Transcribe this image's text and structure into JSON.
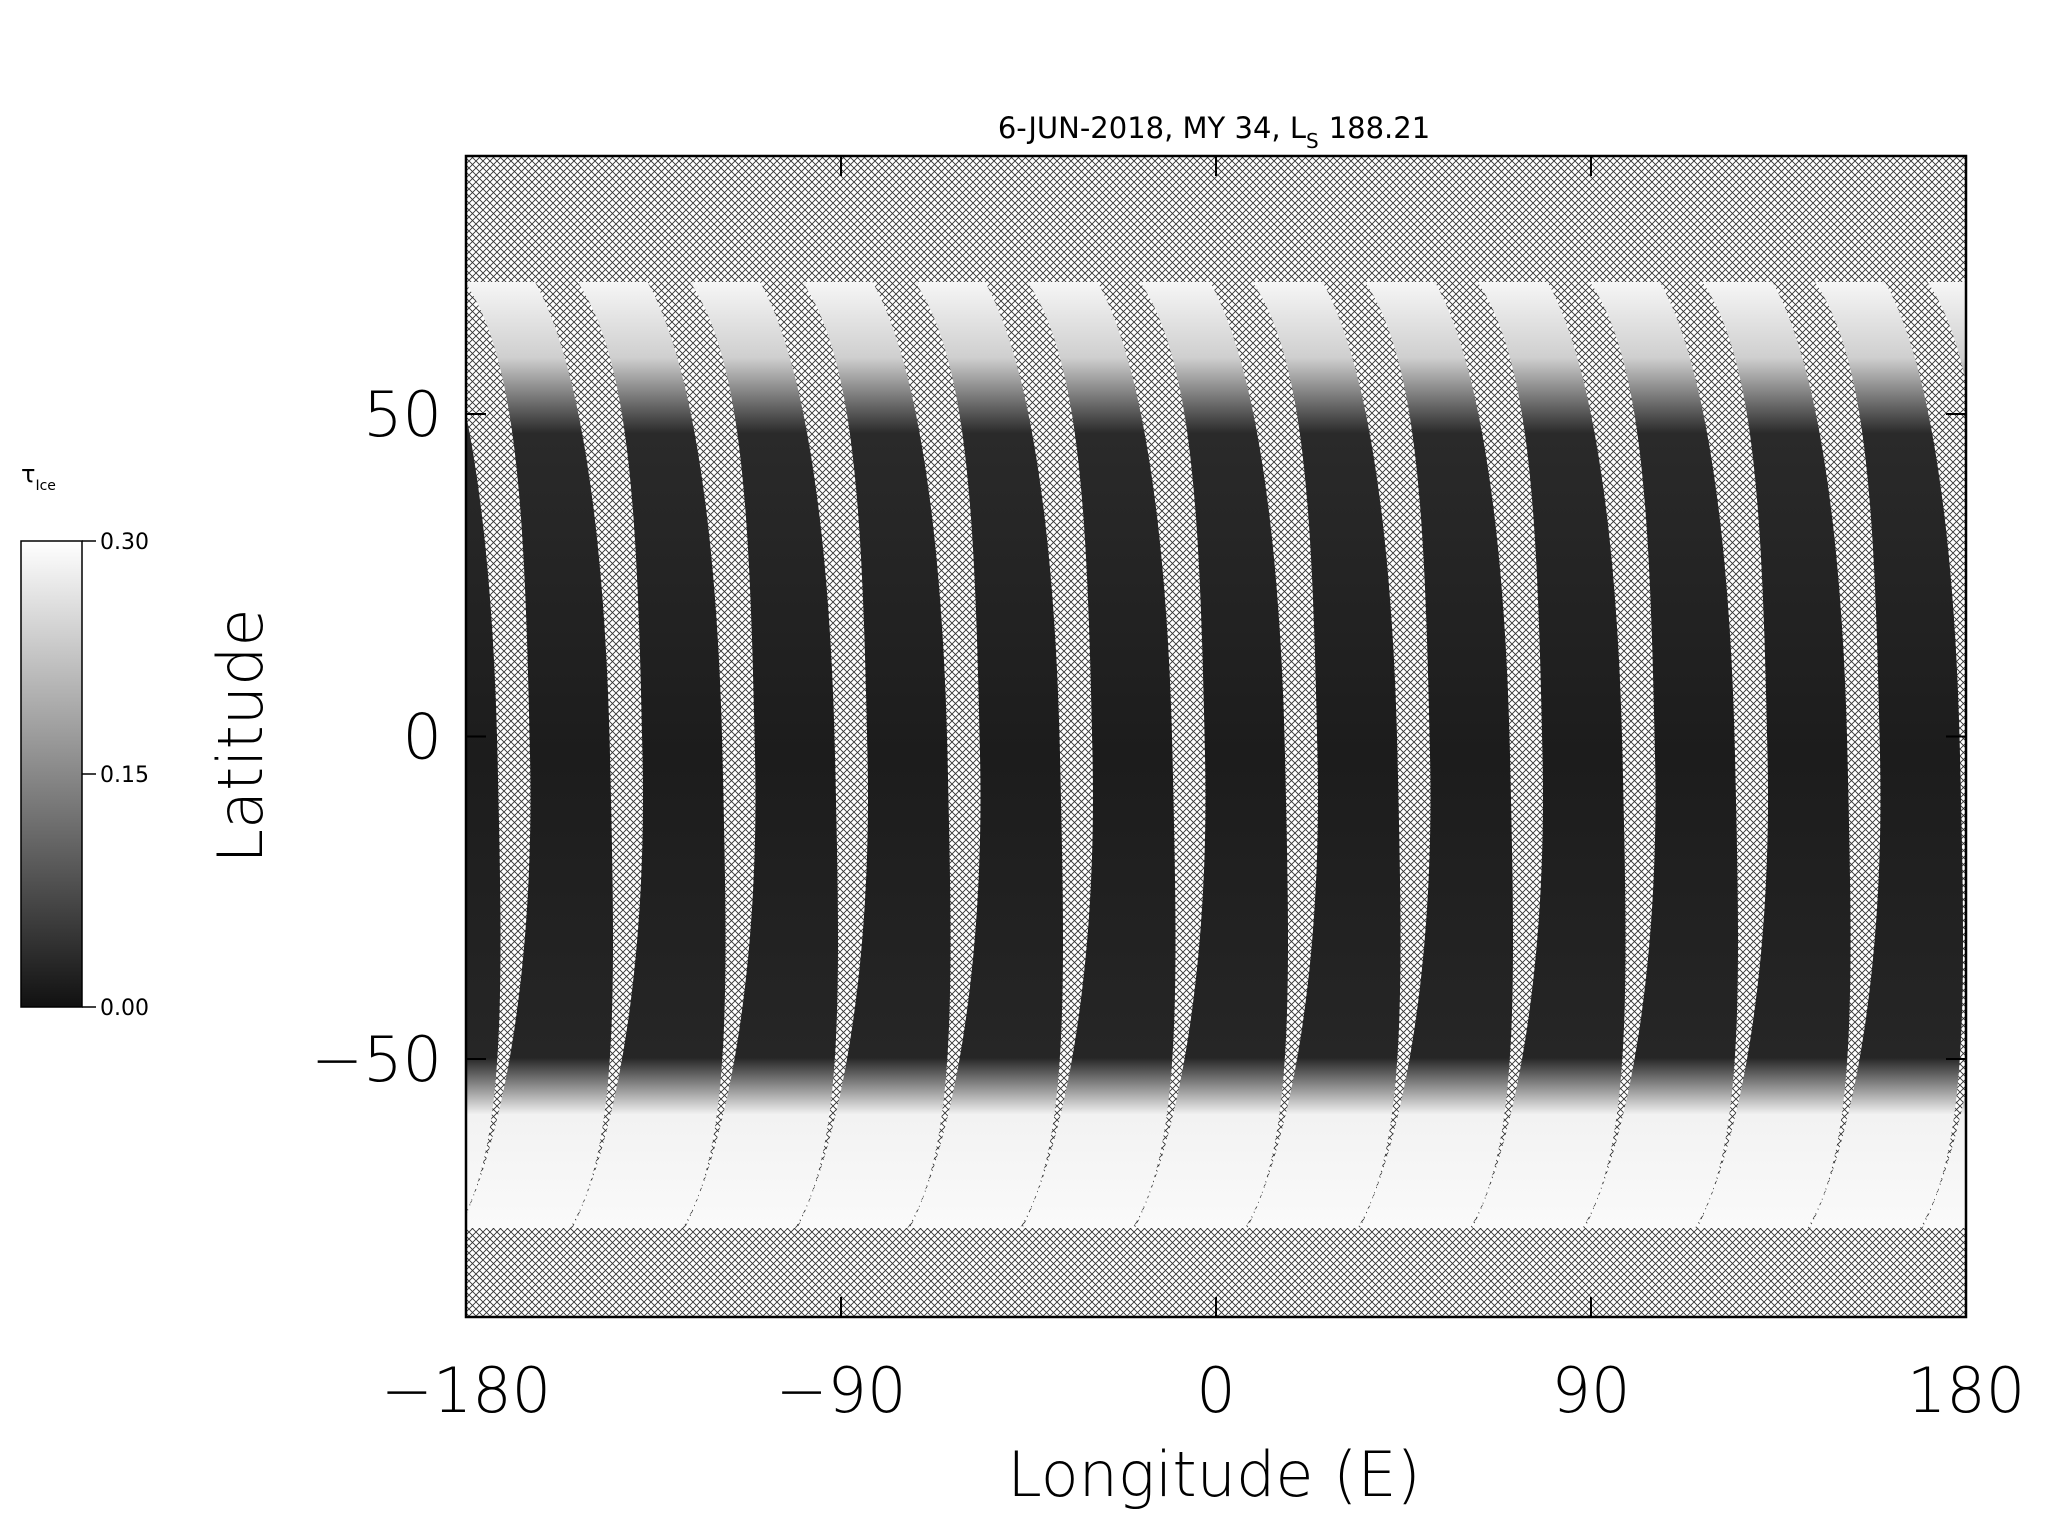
{
  "chart_data": {
    "type": "map",
    "title": "6-JUN-2018, MY 34,  L",
    "title_subscript": "S",
    "title_suffix": "188.21",
    "xlabel": "Longitude (E)",
    "ylabel": "Latitude",
    "xlim": [
      -180,
      180
    ],
    "ylim": [
      -90,
      90
    ],
    "xticks": [
      {
        "value": -180,
        "label": "−180"
      },
      {
        "value": -90,
        "label": "−90"
      },
      0,
      90,
      180
    ],
    "yticks": [
      {
        "value": -50,
        "label": "−50"
      },
      0,
      50
    ],
    "colorbar": {
      "label": "τ",
      "label_subscript": "Ice",
      "lim": [
        0,
        0.3
      ],
      "ticks": [
        {
          "value": 0,
          "label": "0.00"
        },
        {
          "value": 0.15,
          "label": "0.15"
        },
        {
          "value": 0.3,
          "label": "0.30"
        }
      ],
      "colors": [
        "#111111",
        "#ffffff"
      ]
    }
  }
}
